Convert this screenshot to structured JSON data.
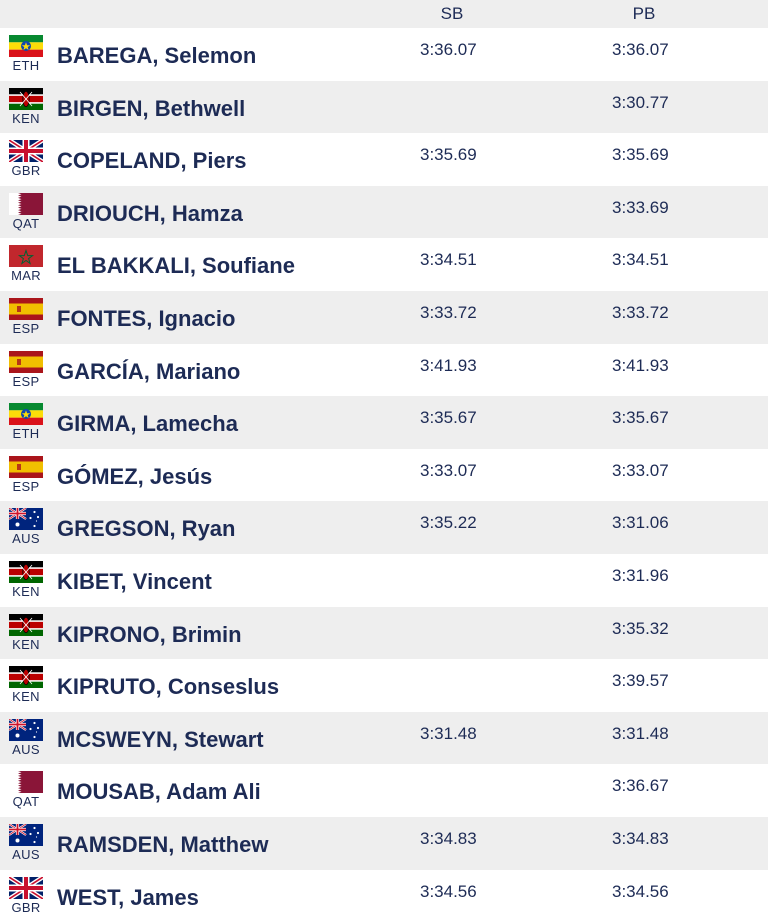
{
  "header": {
    "sb": "SB",
    "pb": "PB"
  },
  "athletes": [
    {
      "code": "ETH",
      "name": "BAREGA, Selemon",
      "sb": "3:36.07",
      "pb": "3:36.07"
    },
    {
      "code": "KEN",
      "name": "BIRGEN, Bethwell",
      "sb": "",
      "pb": "3:30.77"
    },
    {
      "code": "GBR",
      "name": "COPELAND, Piers",
      "sb": "3:35.69",
      "pb": "3:35.69"
    },
    {
      "code": "QAT",
      "name": "DRIOUCH, Hamza",
      "sb": "",
      "pb": "3:33.69"
    },
    {
      "code": "MAR",
      "name": "EL BAKKALI, Soufiane",
      "sb": "3:34.51",
      "pb": "3:34.51"
    },
    {
      "code": "ESP",
      "name": "FONTES, Ignacio",
      "sb": "3:33.72",
      "pb": "3:33.72"
    },
    {
      "code": "ESP",
      "name": "GARCÍA, Mariano",
      "sb": "3:41.93",
      "pb": "3:41.93"
    },
    {
      "code": "ETH",
      "name": "GIRMA, Lamecha",
      "sb": "3:35.67",
      "pb": "3:35.67"
    },
    {
      "code": "ESP",
      "name": "GÓMEZ, Jesús",
      "sb": "3:33.07",
      "pb": "3:33.07"
    },
    {
      "code": "AUS",
      "name": "GREGSON, Ryan",
      "sb": "3:35.22",
      "pb": "3:31.06"
    },
    {
      "code": "KEN",
      "name": "KIBET, Vincent",
      "sb": "",
      "pb": "3:31.96"
    },
    {
      "code": "KEN",
      "name": "KIPRONO, Brimin",
      "sb": "",
      "pb": "3:35.32"
    },
    {
      "code": "KEN",
      "name": "KIPRUTO, Conseslus",
      "sb": "",
      "pb": "3:39.57"
    },
    {
      "code": "AUS",
      "name": "MCSWEYN, Stewart",
      "sb": "3:31.48",
      "pb": "3:31.48"
    },
    {
      "code": "QAT",
      "name": "MOUSAB, Adam Ali",
      "sb": "",
      "pb": "3:36.67"
    },
    {
      "code": "AUS",
      "name": "RAMSDEN, Matthew",
      "sb": "3:34.83",
      "pb": "3:34.83"
    },
    {
      "code": "GBR",
      "name": "WEST, James",
      "sb": "3:34.56",
      "pb": "3:34.56"
    }
  ],
  "colors": {
    "text": "#1d2b55",
    "stripe": "#eeeeee"
  }
}
